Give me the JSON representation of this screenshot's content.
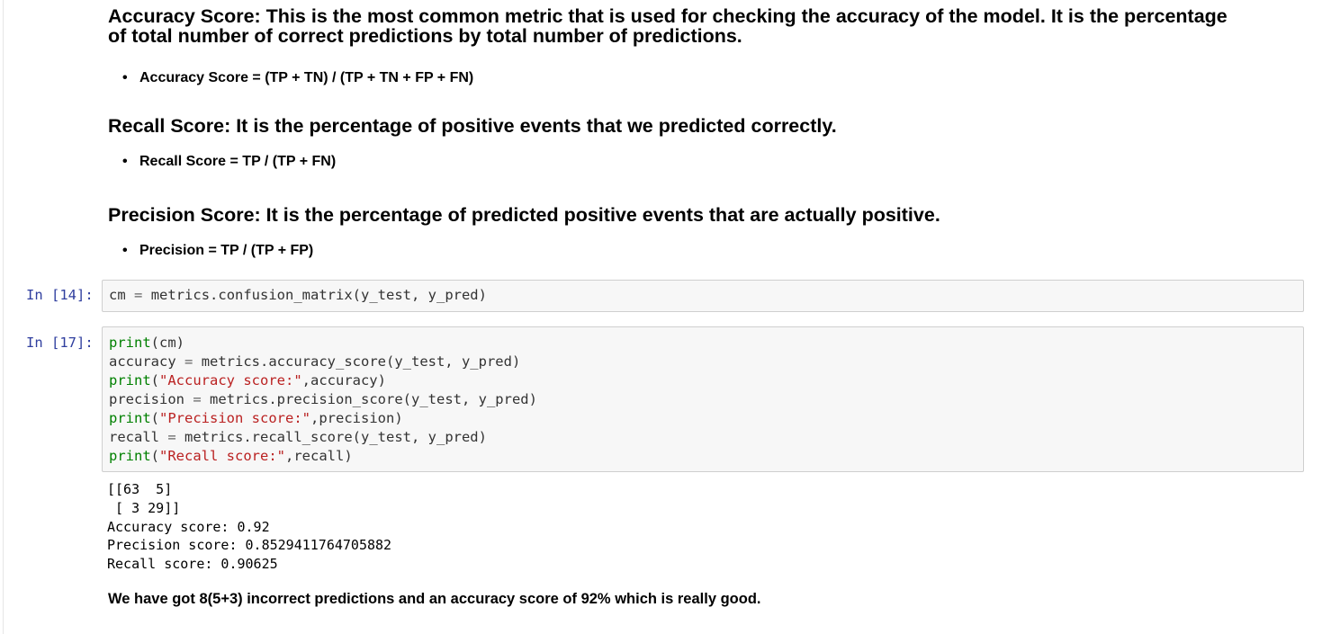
{
  "markdown": {
    "accuracy": {
      "heading_line1": "Accuracy Score: This is the most common metric that is used for checking the accuracy of the model. It is the percentage",
      "heading_line2": "of total number of correct predictions by total number of predictions.",
      "formula": "Accuracy Score = (TP + TN) / (TP + TN + FP + FN)"
    },
    "recall": {
      "heading": "Recall Score: It is the percentage of positive events that we predicted correctly.",
      "formula": "Recall Score = TP / (TP + FN)"
    },
    "precision": {
      "heading": "Precision Score: It is the percentage of predicted positive events that are actually positive.",
      "formula": "Precision = TP / (TP + FP)"
    },
    "bullet": "•"
  },
  "cells": [
    {
      "prompt": "In [14]:",
      "code": {
        "line1": {
          "var": "cm",
          "eq": "=",
          "rest": "metrics.confusion_matrix(y_test, y_pred)"
        }
      }
    },
    {
      "prompt": "In [17]:",
      "code": {
        "line1": {
          "fn": "print",
          "rest": "(cm)"
        },
        "line2": {
          "var": "accuracy",
          "eq": "=",
          "rest": "metrics.accuracy_score(y_test, y_pred)"
        },
        "line3": {
          "fn": "print",
          "open": "(",
          "str": "\"Accuracy score:\"",
          "rest": ",accuracy)"
        },
        "line4": {
          "var": "precision",
          "eq": "=",
          "rest": "metrics.precision_score(y_test, y_pred)"
        },
        "line5": {
          "fn": "print",
          "open": "(",
          "str": "\"Precision score:\"",
          "rest": ",precision)"
        },
        "line6": {
          "var": "recall",
          "eq": "=",
          "rest": "metrics.recall_score(y_test, y_pred)"
        },
        "line7": {
          "fn": "print",
          "open": "(",
          "str": "\"Recall score:\"",
          "rest": ",recall)"
        }
      },
      "output": [
        "[[63  5]",
        " [ 3 29]]",
        "Accuracy score: 0.92",
        "Precision score: 0.8529411764705882",
        "Recall score: 0.90625"
      ]
    }
  ],
  "conclusion": "We have got 8(5+3) incorrect predictions and an accuracy score of 92% which is really good."
}
